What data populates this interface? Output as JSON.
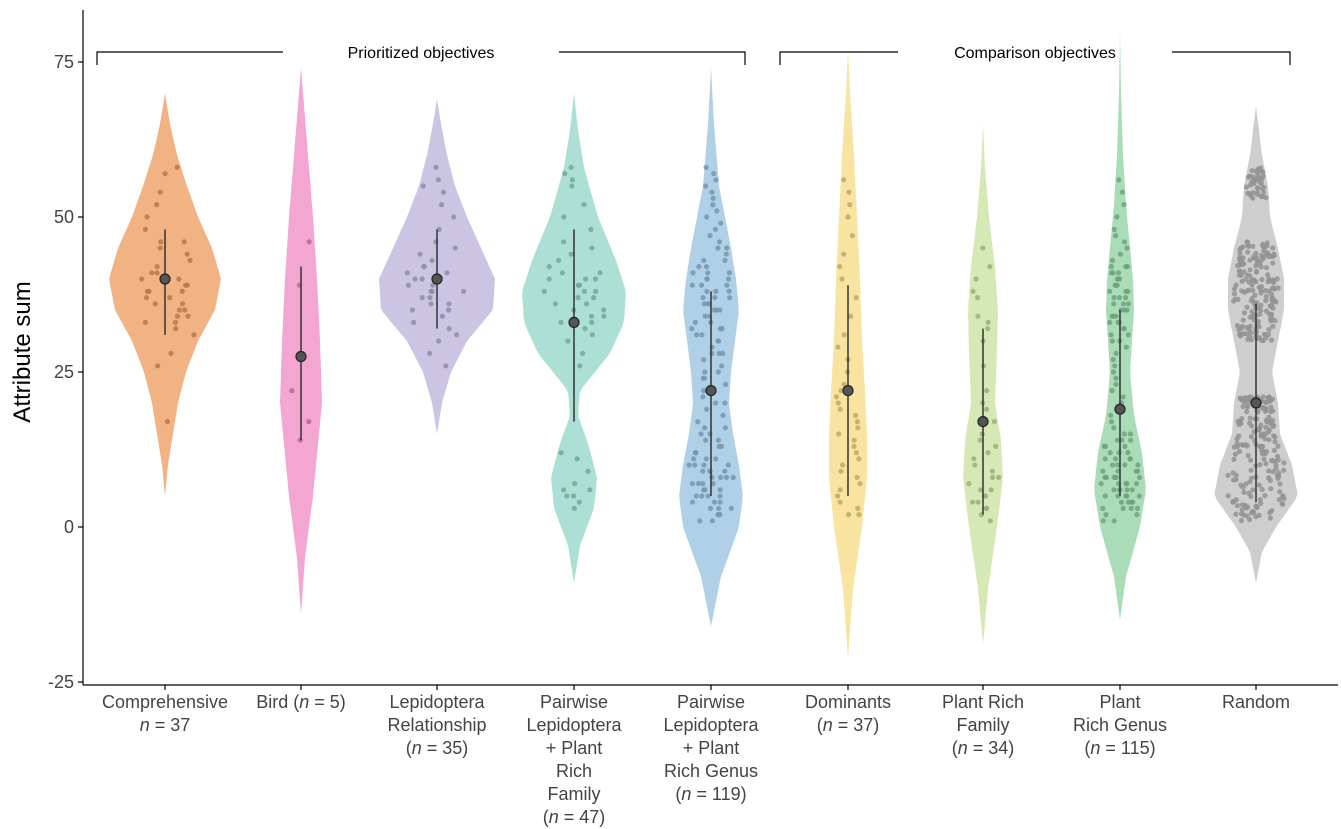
{
  "chart_data": {
    "type": "violin",
    "ylabel": "Attribute sum",
    "ylim": [
      -25,
      85
    ],
    "yticks": [
      "-25",
      "0",
      "25",
      "50",
      "75"
    ],
    "ytick_values": [
      -25,
      0,
      25,
      50,
      75
    ],
    "grid": false,
    "brackets": [
      {
        "label": "Prioritized objectives",
        "from_category": 0,
        "to_category": 4
      },
      {
        "label": "Comparison objectives",
        "from_category": 5,
        "to_category": 8
      }
    ],
    "categories": [
      {
        "name": "Comprehensive",
        "lines": [
          [
            "Comprehensive"
          ],
          [
            [
              "i",
              "n"
            ],
            [
              "",
              " = 37"
            ]
          ]
        ],
        "n": 37,
        "color": "#ec9a5b",
        "median": 40,
        "whisker": [
          31,
          48
        ],
        "density": [
          [
            5,
            0
          ],
          [
            10,
            3
          ],
          [
            15,
            8
          ],
          [
            20,
            13
          ],
          [
            25,
            21
          ],
          [
            30,
            33
          ],
          [
            35,
            50
          ],
          [
            40,
            56
          ],
          [
            45,
            47
          ],
          [
            50,
            33
          ],
          [
            55,
            22
          ],
          [
            60,
            12
          ],
          [
            65,
            5
          ],
          [
            70,
            0
          ]
        ],
        "points": [
          17,
          26,
          28,
          31,
          32,
          33,
          33,
          34,
          34,
          35,
          35,
          36,
          36,
          37,
          37,
          38,
          38,
          38,
          39,
          39,
          40,
          40,
          40,
          41,
          41,
          42,
          43,
          44,
          45,
          46,
          46,
          48,
          50,
          52,
          54,
          57,
          58
        ]
      },
      {
        "name": "Bird",
        "lines": [
          [
            [
              "",
              ""
            ],
            [
              "",
              "Bird ("
            ],
            [
              "i",
              "n"
            ],
            [
              "",
              " = 5)"
            ]
          ]
        ],
        "n": 5,
        "color": "#ee88c2",
        "median": 27.5,
        "whisker": [
          14,
          42
        ],
        "density": [
          [
            -14,
            0
          ],
          [
            -5,
            4
          ],
          [
            5,
            12
          ],
          [
            15,
            18
          ],
          [
            20,
            21
          ],
          [
            30,
            19
          ],
          [
            40,
            16
          ],
          [
            50,
            12
          ],
          [
            60,
            7
          ],
          [
            70,
            2
          ],
          [
            74,
            0
          ]
        ],
        "points": [
          14,
          17,
          22,
          39,
          46
        ]
      },
      {
        "name": "Lepidoptera Relationship",
        "lines": [
          [
            "Lepidoptera"
          ],
          [
            "Relationship"
          ],
          [
            [
              "",
              ""
            ],
            [
              "",
              "("
            ],
            [
              "i",
              "n"
            ],
            [
              "",
              " = 35)"
            ]
          ]
        ],
        "n": 35,
        "color": "#b9b2d9",
        "median": 40,
        "whisker": [
          32,
          48
        ],
        "density": [
          [
            15,
            0
          ],
          [
            20,
            5
          ],
          [
            25,
            14
          ],
          [
            30,
            30
          ],
          [
            35,
            56
          ],
          [
            40,
            58
          ],
          [
            45,
            44
          ],
          [
            50,
            30
          ],
          [
            55,
            18
          ],
          [
            60,
            10
          ],
          [
            65,
            4
          ],
          [
            69,
            0
          ]
        ],
        "points": [
          26,
          28,
          30,
          31,
          32,
          33,
          34,
          35,
          35,
          36,
          36,
          37,
          37,
          38,
          38,
          38,
          39,
          39,
          40,
          40,
          41,
          41,
          42,
          42,
          43,
          44,
          45,
          46,
          48,
          50,
          52,
          54,
          55,
          56,
          58
        ]
      },
      {
        "name": "Pairwise Lepidoptera + Plant Rich Family",
        "lines": [
          [
            "Pairwise"
          ],
          [
            "Lepidoptera"
          ],
          [
            "+ Plant"
          ],
          [
            "Rich"
          ],
          [
            "Family"
          ],
          [
            [
              "",
              ""
            ],
            [
              "",
              "("
            ],
            [
              "i",
              "n"
            ],
            [
              "",
              " = 47)"
            ]
          ]
        ],
        "n": 47,
        "color": "#92d6c6",
        "median": 33,
        "whisker": [
          17,
          48
        ],
        "density": [
          [
            -9,
            0
          ],
          [
            -3,
            6
          ],
          [
            3,
            20
          ],
          [
            8,
            23
          ],
          [
            13,
            15
          ],
          [
            18,
            4
          ],
          [
            22,
            6
          ],
          [
            28,
            36
          ],
          [
            33,
            50
          ],
          [
            38,
            52
          ],
          [
            43,
            42
          ],
          [
            50,
            24
          ],
          [
            58,
            10
          ],
          [
            64,
            4
          ],
          [
            70,
            0
          ]
        ],
        "points": [
          3,
          4,
          5,
          5,
          6,
          6,
          7,
          9,
          11,
          12,
          26,
          28,
          30,
          31,
          32,
          33,
          34,
          35,
          35,
          36,
          37,
          38,
          38,
          39,
          40,
          40,
          41,
          42,
          43,
          44,
          45,
          46,
          48,
          50,
          52,
          55,
          56,
          57,
          58,
          36,
          37,
          33,
          34,
          39,
          40,
          41,
          38
        ]
      },
      {
        "name": "Pairwise Lepidoptera + Plant Rich Genus",
        "lines": [
          [
            "Pairwise"
          ],
          [
            "Lepidoptera"
          ],
          [
            "+ Plant"
          ],
          [
            "Rich Genus"
          ],
          [
            [
              "",
              ""
            ],
            [
              "",
              "("
            ],
            [
              "i",
              "n"
            ],
            [
              "",
              " = 119)"
            ]
          ]
        ],
        "n": 119,
        "color": "#96c0df",
        "median": 22,
        "whisker": [
          5,
          38
        ],
        "density": [
          [
            -16,
            0
          ],
          [
            -8,
            10
          ],
          [
            0,
            28
          ],
          [
            5,
            32
          ],
          [
            10,
            28
          ],
          [
            15,
            22
          ],
          [
            20,
            18
          ],
          [
            25,
            20
          ],
          [
            30,
            24
          ],
          [
            35,
            28
          ],
          [
            40,
            25
          ],
          [
            45,
            20
          ],
          [
            50,
            14
          ],
          [
            55,
            8
          ],
          [
            65,
            3
          ],
          [
            74,
            0
          ]
        ],
        "points": [
          1,
          1,
          2,
          2,
          2,
          3,
          3,
          3,
          4,
          4,
          4,
          5,
          5,
          5,
          5,
          6,
          6,
          6,
          7,
          7,
          7,
          7,
          8,
          8,
          8,
          8,
          9,
          9,
          9,
          9,
          10,
          10,
          10,
          10,
          11,
          11,
          11,
          12,
          12,
          12,
          13,
          13,
          14,
          14,
          15,
          15,
          16,
          16,
          17,
          18,
          19,
          20,
          21,
          22,
          22,
          23,
          24,
          25,
          25,
          26,
          27,
          28,
          28,
          29,
          30,
          30,
          31,
          31,
          32,
          32,
          33,
          33,
          34,
          34,
          35,
          35,
          35,
          36,
          36,
          36,
          37,
          37,
          37,
          38,
          38,
          38,
          39,
          39,
          39,
          40,
          40,
          40,
          41,
          41,
          41,
          42,
          42,
          43,
          43,
          44,
          45,
          45,
          46,
          47,
          48,
          49,
          50,
          51,
          52,
          53,
          54,
          55,
          56,
          57,
          58,
          20,
          24,
          28,
          32
        ]
      },
      {
        "name": "Dominants",
        "lines": [
          [
            "Dominants"
          ],
          [
            [
              "",
              ""
            ],
            [
              "",
              "("
            ],
            [
              "i",
              "n"
            ],
            [
              "",
              " = 37)"
            ]
          ]
        ],
        "n": 37,
        "color": "#f5d982",
        "median": 22,
        "whisker": [
          5,
          39
        ],
        "density": [
          [
            -21,
            0
          ],
          [
            -10,
            5
          ],
          [
            0,
            14
          ],
          [
            8,
            19
          ],
          [
            15,
            19
          ],
          [
            22,
            17
          ],
          [
            30,
            14
          ],
          [
            40,
            12
          ],
          [
            50,
            9
          ],
          [
            60,
            6
          ],
          [
            70,
            2
          ],
          [
            77,
            0
          ]
        ],
        "points": [
          2,
          2,
          3,
          4,
          5,
          6,
          7,
          8,
          9,
          10,
          11,
          12,
          13,
          14,
          15,
          16,
          17,
          18,
          19,
          20,
          21,
          22,
          23,
          25,
          27,
          29,
          31,
          34,
          37,
          40,
          42,
          44,
          47,
          50,
          52,
          54,
          56
        ]
      },
      {
        "name": "Plant Rich Family",
        "lines": [
          [
            "Plant Rich"
          ],
          [
            "Family"
          ],
          [
            [
              "",
              ""
            ],
            [
              "",
              "("
            ],
            [
              "i",
              "n"
            ],
            [
              "",
              " = 34)"
            ]
          ]
        ],
        "n": 34,
        "color": "#c8e09e",
        "median": 17,
        "whisker": [
          2,
          32
        ],
        "density": [
          [
            -19,
            0
          ],
          [
            -10,
            5
          ],
          [
            0,
            14
          ],
          [
            8,
            20
          ],
          [
            14,
            18
          ],
          [
            20,
            12
          ],
          [
            28,
            14
          ],
          [
            35,
            15
          ],
          [
            42,
            12
          ],
          [
            50,
            6
          ],
          [
            58,
            2
          ],
          [
            65,
            0
          ]
        ],
        "points": [
          1,
          2,
          3,
          3,
          4,
          4,
          5,
          5,
          6,
          6,
          7,
          8,
          8,
          9,
          10,
          11,
          12,
          13,
          14,
          15,
          17,
          19,
          20,
          22,
          26,
          30,
          32,
          33,
          34,
          37,
          38,
          40,
          42,
          45
        ]
      },
      {
        "name": "Plant Rich Genus",
        "lines": [
          [
            "Plant"
          ],
          [
            "Rich Genus"
          ],
          [
            [
              "",
              ""
            ],
            [
              "",
              "("
            ],
            [
              "i",
              "n"
            ],
            [
              "",
              " = 115)"
            ]
          ]
        ],
        "n": 115,
        "color": "#8fd0a0",
        "median": 19,
        "whisker": [
          5,
          35
        ],
        "density": [
          [
            -15,
            0
          ],
          [
            -8,
            6
          ],
          [
            0,
            20
          ],
          [
            6,
            26
          ],
          [
            12,
            22
          ],
          [
            18,
            14
          ],
          [
            25,
            10
          ],
          [
            30,
            12
          ],
          [
            35,
            14
          ],
          [
            40,
            13
          ],
          [
            45,
            10
          ],
          [
            52,
            6
          ],
          [
            60,
            3
          ],
          [
            70,
            1
          ],
          [
            80,
            0
          ]
        ],
        "points": [
          1,
          1,
          2,
          2,
          3,
          3,
          3,
          4,
          4,
          4,
          5,
          5,
          5,
          5,
          6,
          6,
          6,
          6,
          7,
          7,
          7,
          7,
          8,
          8,
          8,
          8,
          9,
          9,
          9,
          10,
          10,
          10,
          11,
          11,
          11,
          12,
          12,
          13,
          13,
          14,
          14,
          15,
          15,
          16,
          17,
          18,
          19,
          20,
          21,
          22,
          23,
          24,
          25,
          26,
          27,
          28,
          29,
          30,
          30,
          31,
          31,
          32,
          32,
          33,
          33,
          34,
          34,
          35,
          35,
          36,
          36,
          37,
          37,
          38,
          38,
          39,
          39,
          40,
          40,
          41,
          41,
          42,
          42,
          43,
          44,
          45,
          46,
          47,
          48,
          50,
          52,
          54,
          56,
          9,
          10,
          11,
          8,
          7,
          6,
          5,
          12,
          13,
          4,
          3,
          14,
          36,
          37,
          38,
          39,
          40,
          41,
          35,
          34,
          33,
          42
        ]
      },
      {
        "name": "Random",
        "lines": [
          [
            "Random"
          ]
        ],
        "n": null,
        "color": "#bdbdbd",
        "median": 20,
        "whisker": [
          4,
          36
        ],
        "density": [
          [
            -9,
            0
          ],
          [
            -4,
            6
          ],
          [
            0,
            20
          ],
          [
            5,
            42
          ],
          [
            10,
            36
          ],
          [
            15,
            24
          ],
          [
            20,
            22
          ],
          [
            25,
            16
          ],
          [
            30,
            22
          ],
          [
            35,
            28
          ],
          [
            40,
            28
          ],
          [
            45,
            22
          ],
          [
            50,
            14
          ],
          [
            55,
            12
          ],
          [
            60,
            6
          ],
          [
            68,
            0
          ]
        ],
        "points": []
      }
    ]
  }
}
